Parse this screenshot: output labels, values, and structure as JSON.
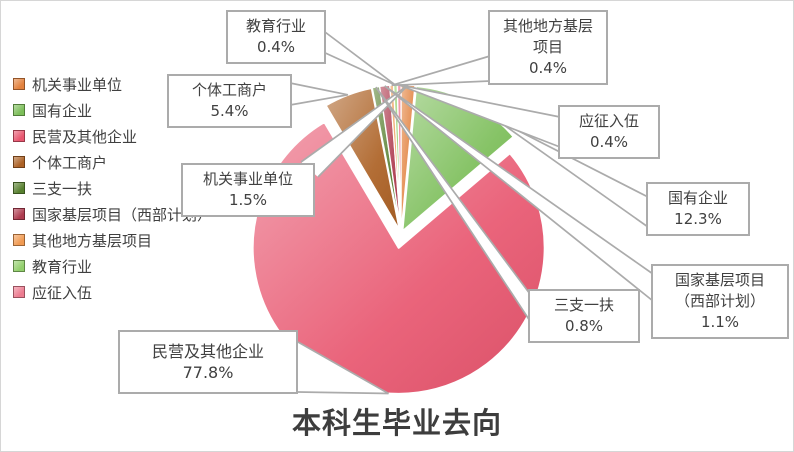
{
  "chart_data": {
    "type": "pie",
    "variant": "exploded-pie",
    "title": "本科生毕业去向",
    "legend_position": "left",
    "data_labels": "category-and-percent-callouts",
    "slices": [
      {
        "label": "机关事业单位",
        "value": 1.5,
        "pct_label": "1.5%",
        "color": "#e2813d"
      },
      {
        "label": "国有企业",
        "value": 12.3,
        "pct_label": "12.3%",
        "color": "#7cbe59"
      },
      {
        "label": "民营及其他企业",
        "value": 77.8,
        "pct_label": "77.8%",
        "color": "#e8566f"
      },
      {
        "label": "个体工商户",
        "value": 5.4,
        "pct_label": "5.4%",
        "color": "#ac6125"
      },
      {
        "label": "三支一扶",
        "value": 0.8,
        "pct_label": "0.8%",
        "color": "#57802f"
      },
      {
        "label": "国家基层项目（西部计划）",
        "value": 1.1,
        "pct_label": "1.1%",
        "color": "#ad3b4f"
      },
      {
        "label": "其他地方基层项目",
        "value": 0.4,
        "pct_label": "0.4%",
        "color": "#f09a52"
      },
      {
        "label": "教育行业",
        "value": 0.4,
        "pct_label": "0.4%",
        "color": "#92cf6c"
      },
      {
        "label": "应征入伍",
        "value": 0.4,
        "pct_label": "0.4%",
        "color": "#ec7c90"
      }
    ],
    "colors": {
      "background": "#ffffff",
      "callout_border": "#ababab",
      "leader_line": "#ababab",
      "text": "#404040",
      "slice_outline": "#ffffff"
    }
  }
}
